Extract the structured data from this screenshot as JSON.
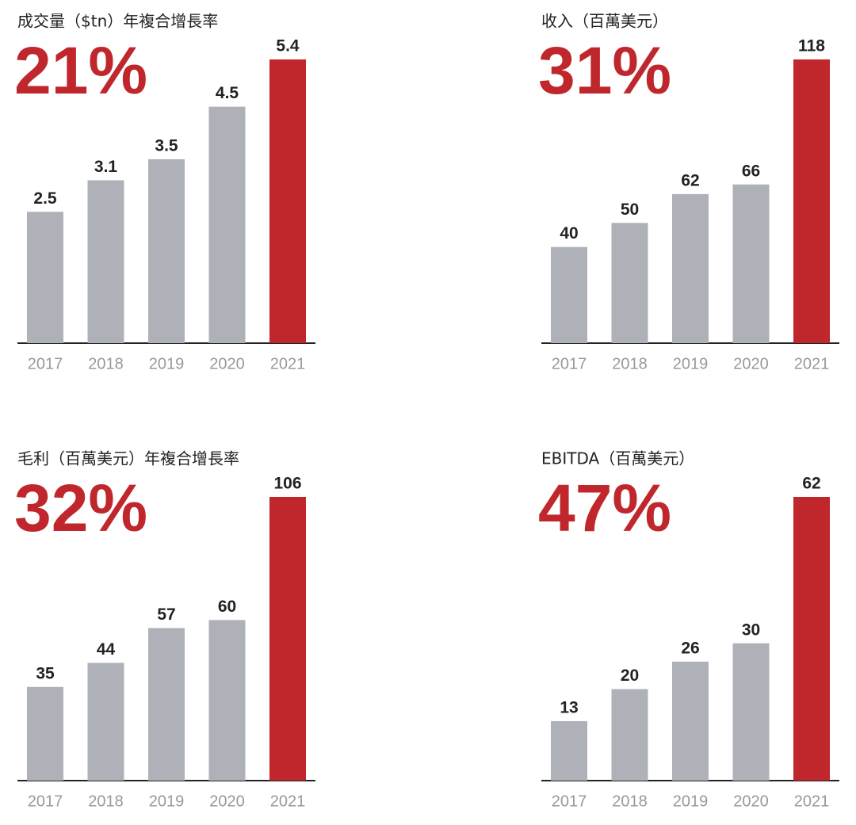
{
  "chart_data": [
    {
      "type": "bar",
      "title": "成交量（$tn）年複合增長率",
      "subtitle": "21%",
      "categories": [
        "2017",
        "2018",
        "2019",
        "2020",
        "2021"
      ],
      "values": [
        2.5,
        3.1,
        3.5,
        4.5,
        5.4
      ],
      "colors": [
        "#aeb1b8",
        "#aeb1b8",
        "#aeb1b8",
        "#aeb1b8",
        "#c0272d"
      ]
    },
    {
      "type": "bar",
      "title": "收入（百萬美元）",
      "subtitle": "31%",
      "categories": [
        "2017",
        "2018",
        "2019",
        "2020",
        "2021"
      ],
      "values": [
        40,
        50,
        62,
        66,
        118
      ],
      "colors": [
        "#aeb1b8",
        "#aeb1b8",
        "#aeb1b8",
        "#aeb1b8",
        "#c0272d"
      ]
    },
    {
      "type": "bar",
      "title": "毛利（百萬美元）年複合增長率",
      "subtitle": "32%",
      "categories": [
        "2017",
        "2018",
        "2019",
        "2020",
        "2021"
      ],
      "values": [
        35,
        44,
        57,
        60,
        106
      ],
      "colors": [
        "#aeb1b8",
        "#aeb1b8",
        "#aeb1b8",
        "#aeb1b8",
        "#c0272d"
      ]
    },
    {
      "type": "bar",
      "title": "EBITDA（百萬美元）",
      "subtitle": "47%",
      "categories": [
        "2017",
        "2018",
        "2019",
        "2020",
        "2021"
      ],
      "values": [
        13,
        20,
        26,
        30,
        62
      ],
      "colors": [
        "#aeb1b8",
        "#aeb1b8",
        "#aeb1b8",
        "#aeb1b8",
        "#c0272d"
      ]
    }
  ]
}
